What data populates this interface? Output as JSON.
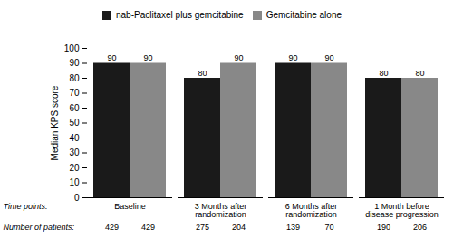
{
  "chart_data": {
    "type": "bar",
    "categories": [
      "Baseline",
      "3 Months after randomization",
      "6 Months after randomization",
      "1 Month before disease progression"
    ],
    "series": [
      {
        "name": "nab-Paclitaxel plus gemcitabine",
        "color": "#1a1a1a",
        "values": [
          90,
          80,
          90,
          80
        ],
        "patients": [
          429,
          275,
          139,
          190
        ]
      },
      {
        "name": "Gemcitabine alone",
        "color": "#888888",
        "values": [
          90,
          90,
          90,
          80
        ],
        "patients": [
          429,
          204,
          70,
          206
        ]
      }
    ],
    "ylabel": "Median KPS score",
    "ylim": [
      0,
      100
    ],
    "yticks": [
      0,
      10,
      20,
      30,
      40,
      50,
      60,
      70,
      80,
      90,
      100
    ],
    "annotations": [
      "Time points:",
      "Number of patients:"
    ],
    "data_labels": true,
    "grid": false,
    "legend": "top"
  }
}
